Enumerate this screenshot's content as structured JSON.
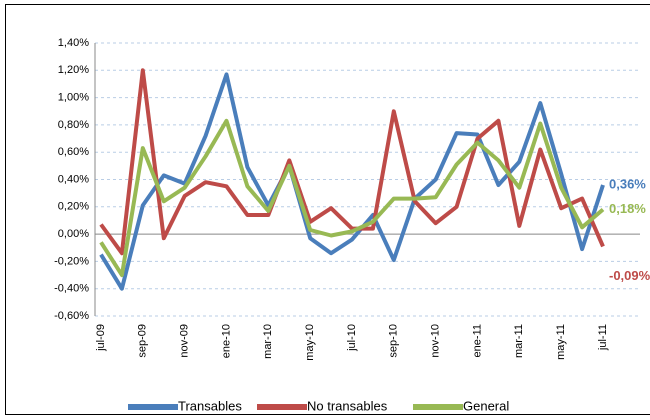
{
  "chart_data": {
    "type": "line",
    "categories": [
      "jul-09",
      null,
      "sep-09",
      null,
      "nov-09",
      null,
      "ene-10",
      null,
      "mar-10",
      null,
      "may-10",
      null,
      "jul-10",
      null,
      "sep-10",
      null,
      "nov-10",
      null,
      "ene-11",
      null,
      "mar-11",
      null,
      "may-11",
      null,
      "jul-11"
    ],
    "series": [
      {
        "name": "Transables",
        "color": "#4a7ebb",
        "values": [
          -0.15,
          -0.4,
          0.21,
          0.43,
          0.37,
          0.72,
          1.17,
          0.49,
          0.21,
          0.5,
          -0.03,
          -0.14,
          -0.04,
          0.14,
          -0.19,
          0.26,
          0.4,
          0.74,
          0.73,
          0.36,
          0.53,
          0.96,
          0.44,
          -0.11,
          0.36
        ],
        "value_labels": [
          null,
          null,
          null,
          null,
          null,
          null,
          null,
          null,
          null,
          null,
          null,
          null,
          null,
          null,
          null,
          null,
          null,
          null,
          null,
          null,
          null,
          null,
          null,
          null,
          "0,36%"
        ]
      },
      {
        "name": "No transables",
        "color": "#be4b48",
        "values": [
          0.07,
          -0.14,
          1.2,
          -0.03,
          0.28,
          0.38,
          0.35,
          0.14,
          0.14,
          0.54,
          0.09,
          0.19,
          0.04,
          0.04,
          0.9,
          0.24,
          0.08,
          0.2,
          0.7,
          0.83,
          0.06,
          0.62,
          0.19,
          0.26,
          -0.09
        ],
        "value_labels": [
          null,
          null,
          null,
          null,
          null,
          null,
          null,
          null,
          null,
          null,
          null,
          null,
          null,
          null,
          null,
          null,
          null,
          null,
          null,
          null,
          null,
          null,
          null,
          null,
          "-0,09%"
        ]
      },
      {
        "name": "General",
        "color": "#98b954",
        "values": [
          -0.06,
          -0.3,
          0.63,
          0.24,
          0.34,
          0.57,
          0.83,
          0.35,
          0.17,
          0.5,
          0.03,
          -0.01,
          0.02,
          0.09,
          0.26,
          0.26,
          0.27,
          0.51,
          0.67,
          0.54,
          0.34,
          0.81,
          0.34,
          0.05,
          0.18
        ],
        "value_labels": [
          null,
          null,
          null,
          null,
          null,
          null,
          null,
          null,
          null,
          null,
          null,
          null,
          null,
          null,
          null,
          null,
          null,
          null,
          null,
          null,
          null,
          null,
          null,
          null,
          "0,18%"
        ]
      }
    ],
    "ylim": [
      -0.6,
      1.4
    ],
    "yticks": [
      {
        "value": -0.6,
        "label": "-0,60%"
      },
      {
        "value": -0.4,
        "label": "-0,40%"
      },
      {
        "value": -0.2,
        "label": "-0,20%"
      },
      {
        "value": 0,
        "label": "0,00%"
      },
      {
        "value": 0.2,
        "label": "0,20%"
      },
      {
        "value": 0.4,
        "label": "0,40%"
      },
      {
        "value": 0.6,
        "label": "0,60%"
      },
      {
        "value": 0.8,
        "label": "0,80%"
      },
      {
        "value": 1.0,
        "label": "1,00%"
      },
      {
        "value": 1.2,
        "label": "1,20%"
      },
      {
        "value": 1.4,
        "label": "1,40%"
      }
    ],
    "grid": true,
    "legend": "bottom"
  }
}
